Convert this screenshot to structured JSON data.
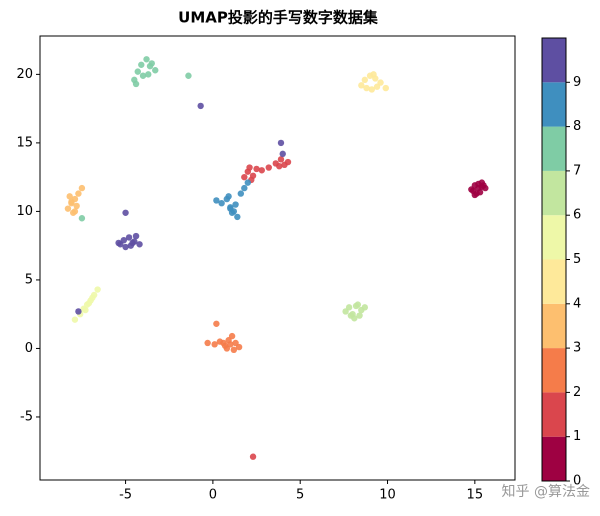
{
  "chart_data": {
    "type": "scatter",
    "title": "UMAP投影的手写数字数据集",
    "xlim": [
      -9.9,
      17.3
    ],
    "ylim": [
      -9.6,
      22.8
    ],
    "xticks": [
      -5,
      0,
      5,
      10,
      15
    ],
    "yticks": [
      -5,
      0,
      5,
      10,
      15,
      20
    ],
    "colorbar": {
      "lim": [
        0,
        10
      ],
      "ticks": [
        0,
        1,
        2,
        3,
        4,
        5,
        6,
        7,
        8,
        9
      ]
    },
    "watermark": "知乎 @算法金",
    "series": [
      {
        "name": "0",
        "color": "#9e0142",
        "x": [
          14.8,
          15.0,
          15.2,
          15.4,
          15.6,
          15.1,
          15.3,
          14.9,
          15.5,
          15.2,
          15.0,
          15.4
        ],
        "y": [
          11.6,
          11.9,
          12.0,
          11.8,
          11.7,
          11.3,
          11.4,
          11.5,
          11.9,
          11.7,
          11.2,
          12.1
        ]
      },
      {
        "name": "1",
        "color": "#da464d",
        "x": [
          1.8,
          2.0,
          2.1,
          2.3,
          2.5,
          2.2,
          2.8,
          3.2,
          3.6,
          3.9,
          4.1,
          4.3,
          3.8,
          2.3
        ],
        "y": [
          12.5,
          12.9,
          13.2,
          12.6,
          13.1,
          12.3,
          13.0,
          13.2,
          13.5,
          13.8,
          13.4,
          13.6,
          13.3,
          -7.9
        ]
      },
      {
        "name": "2",
        "color": "#f57c4a",
        "x": [
          -0.3,
          0.1,
          0.4,
          0.7,
          0.9,
          1.1,
          1.3,
          1.5,
          0.8,
          1.0,
          1.2,
          0.6,
          0.2
        ],
        "y": [
          0.4,
          0.3,
          0.5,
          0.2,
          0.6,
          0.9,
          0.4,
          0.1,
          0.0,
          0.3,
          -0.1,
          0.4,
          1.8
        ]
      },
      {
        "name": "3",
        "color": "#fdbf6f",
        "x": [
          -8.3,
          -8.1,
          -7.9,
          -7.7,
          -8.2,
          -7.8,
          -8.0,
          -7.5,
          -7.9,
          -8.1
        ],
        "y": [
          10.2,
          10.6,
          10.9,
          11.3,
          11.1,
          10.4,
          9.9,
          11.7,
          10.0,
          10.7
        ]
      },
      {
        "name": "4",
        "color": "#fee99a",
        "x": [
          8.5,
          8.7,
          9.0,
          9.3,
          9.6,
          9.9,
          9.1,
          8.8,
          9.4,
          9.2
        ],
        "y": [
          19.2,
          19.6,
          19.9,
          19.7,
          19.4,
          19.0,
          18.9,
          19.0,
          19.1,
          20.0
        ]
      },
      {
        "name": "5",
        "color": "#eef8a8",
        "x": [
          -7.9,
          -7.6,
          -7.4,
          -7.2,
          -7.0,
          -6.8,
          -6.6,
          -7.3,
          -7.1,
          -6.9
        ],
        "y": [
          2.1,
          2.5,
          2.9,
          3.2,
          3.5,
          3.9,
          4.3,
          2.8,
          3.3,
          3.7
        ]
      },
      {
        "name": "6",
        "color": "#c2e69f",
        "x": [
          7.6,
          7.8,
          8.0,
          8.2,
          8.5,
          8.7,
          8.1,
          7.9,
          8.4,
          8.3
        ],
        "y": [
          2.7,
          3.0,
          2.5,
          3.1,
          2.8,
          3.0,
          2.2,
          2.4,
          2.4,
          3.2
        ]
      },
      {
        "name": "7",
        "color": "#7fcca5",
        "x": [
          -4.5,
          -4.3,
          -4.1,
          -3.8,
          -3.5,
          -3.3,
          -4.0,
          -3.7,
          -4.4,
          -3.6,
          -1.4,
          -7.5
        ],
        "y": [
          19.6,
          20.2,
          20.7,
          21.1,
          20.8,
          20.3,
          19.9,
          20.0,
          19.3,
          20.6,
          19.9,
          9.5
        ]
      },
      {
        "name": "8",
        "color": "#3f8fbf",
        "x": [
          0.2,
          0.5,
          0.8,
          1.0,
          1.2,
          1.4,
          0.9,
          1.1,
          1.3,
          1.6,
          1.8,
          2.0,
          1.0
        ],
        "y": [
          10.8,
          10.6,
          10.9,
          10.3,
          10.0,
          9.6,
          11.1,
          9.9,
          10.5,
          11.3,
          11.7,
          12.1,
          10.2
        ]
      },
      {
        "name": "9",
        "color": "#5e4fa2",
        "x": [
          -5.4,
          -5.1,
          -4.8,
          -4.5,
          -4.2,
          -5.0,
          -4.7,
          -4.4,
          -5.3,
          -4.6,
          -0.7,
          3.9,
          4.0,
          -5.0,
          -7.7
        ],
        "y": [
          7.7,
          7.9,
          8.1,
          7.8,
          7.6,
          7.4,
          7.5,
          8.2,
          7.6,
          7.7,
          17.7,
          15.0,
          14.2,
          9.9,
          2.7
        ]
      }
    ]
  }
}
